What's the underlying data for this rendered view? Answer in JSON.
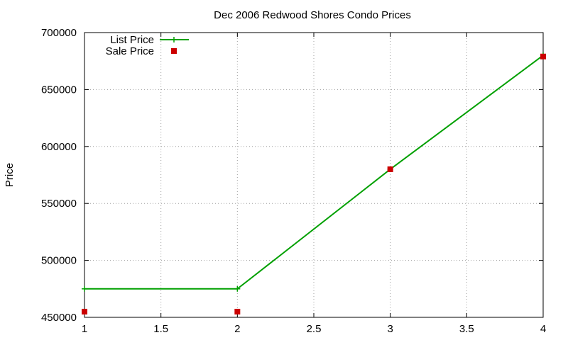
{
  "chart_data": {
    "type": "line",
    "title": "Dec 2006 Redwood Shores Condo Prices",
    "xlabel": "",
    "ylabel": "Price",
    "xlim": [
      1,
      4
    ],
    "ylim": [
      450000,
      700000
    ],
    "x_ticks": [
      "1",
      "1.5",
      "2",
      "2.5",
      "3",
      "3.5",
      "4"
    ],
    "y_ticks": [
      "450000",
      "500000",
      "550000",
      "600000",
      "650000",
      "700000"
    ],
    "grid": true,
    "legend_position": "top-left",
    "series": [
      {
        "name": "List Price",
        "style": "line+crosses",
        "color": "#00a000",
        "x": [
          1,
          2,
          3,
          4
        ],
        "y": [
          475000,
          475000,
          580000,
          680000
        ]
      },
      {
        "name": "Sale Price",
        "style": "squares",
        "color": "#cc0000",
        "x": [
          1,
          2,
          3,
          4
        ],
        "y": [
          455000,
          455000,
          580000,
          679000
        ]
      }
    ]
  }
}
